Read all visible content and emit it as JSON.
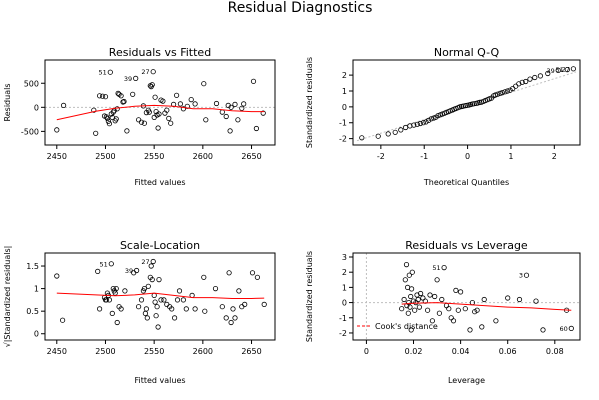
{
  "title": "Residual Diagnostics",
  "colors": {
    "points": "#000000",
    "smooth": "#ff0000",
    "reference": "#bebebe",
    "cook": "#ff0000"
  },
  "chart_data": [
    {
      "type": "scatter",
      "title": "Residuals vs Fitted",
      "xlabel": "Fitted values",
      "ylabel": "Residuals",
      "xlim": [
        2442,
        2670
      ],
      "ylim": [
        -700,
        900
      ],
      "xticks": [
        2450,
        2500,
        2550,
        2600,
        2650
      ],
      "yticks": [
        -500,
        0,
        500
      ],
      "zero_line": 0,
      "x": [
        2450,
        2457,
        2488,
        2490,
        2494,
        2497,
        2499,
        2500,
        2501,
        2502,
        2503,
        2504,
        2505,
        2506,
        2507,
        2508,
        2509,
        2510,
        2511,
        2512,
        2513,
        2514,
        2516,
        2518,
        2519,
        2522,
        2528,
        2531,
        2534,
        2537,
        2539,
        2540,
        2542,
        2544,
        2545,
        2546,
        2547,
        2548,
        2549,
        2550,
        2551,
        2552,
        2553,
        2554,
        2555,
        2557,
        2559,
        2561,
        2563,
        2565,
        2567,
        2570,
        2573,
        2577,
        2580,
        2584,
        2588,
        2592,
        2601,
        2603,
        2614,
        2620,
        2624,
        2626,
        2628,
        2629,
        2633,
        2636,
        2640,
        2642,
        2652,
        2655,
        2662
      ],
      "y": [
        -470,
        40,
        -60,
        -540,
        240,
        230,
        -180,
        220,
        -200,
        -230,
        -290,
        -340,
        730,
        -140,
        -210,
        -100,
        -70,
        -280,
        -240,
        -30,
        290,
        270,
        240,
        110,
        120,
        -490,
        270,
        600,
        -260,
        -310,
        30,
        -330,
        -110,
        -60,
        -100,
        450,
        430,
        470,
        740,
        -210,
        210,
        -90,
        -160,
        -430,
        -140,
        150,
        130,
        -120,
        -60,
        -230,
        -330,
        60,
        250,
        70,
        -30,
        20,
        160,
        70,
        490,
        -260,
        80,
        -100,
        -190,
        40,
        -490,
        0,
        60,
        -260,
        -20,
        70,
        540,
        -440,
        -120
      ],
      "labeled_points": [
        {
          "label": "51",
          "x": 2505,
          "y": 730
        },
        {
          "label": "39",
          "x": 2531,
          "y": 600
        },
        {
          "label": "27",
          "x": 2549,
          "y": 740
        }
      ],
      "smooth": {
        "x": [
          2450,
          2470,
          2490,
          2510,
          2530,
          2550,
          2570,
          2590,
          2610,
          2630,
          2650,
          2663
        ],
        "y": [
          -260,
          -170,
          -80,
          -20,
          20,
          40,
          20,
          -30,
          -30,
          -70,
          -90,
          -90
        ]
      }
    },
    {
      "type": "scatter",
      "title": "Normal Q-Q",
      "xlabel": "Theoretical Quantiles",
      "ylabel": "Standardized residuals",
      "xlim": [
        -2.55,
        2.5
      ],
      "ylim": [
        -2.15,
        2.7
      ],
      "xticks": [
        -2,
        -1,
        0,
        1,
        2
      ],
      "yticks": [
        -2,
        -1,
        0,
        1,
        2
      ],
      "x": [
        -2.44,
        -2.06,
        -1.83,
        -1.67,
        -1.54,
        -1.43,
        -1.33,
        -1.24,
        -1.16,
        -1.09,
        -1.02,
        -0.96,
        -0.9,
        -0.84,
        -0.78,
        -0.73,
        -0.68,
        -0.63,
        -0.58,
        -0.53,
        -0.49,
        -0.44,
        -0.4,
        -0.35,
        -0.31,
        -0.27,
        -0.22,
        -0.18,
        -0.14,
        -0.1,
        -0.05,
        -0.01,
        0.03,
        0.07,
        0.11,
        0.15,
        0.2,
        0.24,
        0.28,
        0.32,
        0.37,
        0.41,
        0.46,
        0.5,
        0.55,
        0.6,
        0.64,
        0.69,
        0.75,
        0.8,
        0.86,
        0.92,
        0.98,
        1.04,
        1.11,
        1.18,
        1.26,
        1.34,
        1.44,
        1.55,
        1.68,
        1.85,
        2.09,
        2.3,
        2.44
      ],
      "y": [
        -1.95,
        -1.85,
        -1.7,
        -1.6,
        -1.45,
        -1.3,
        -1.2,
        -1.15,
        -1.1,
        -1.05,
        -1,
        -0.95,
        -0.85,
        -0.75,
        -0.7,
        -0.65,
        -0.55,
        -0.5,
        -0.45,
        -0.4,
        -0.35,
        -0.3,
        -0.25,
        -0.2,
        -0.15,
        -0.1,
        -0.05,
        0,
        0.02,
        0.05,
        0.08,
        0.1,
        0.12,
        0.15,
        0.18,
        0.2,
        0.22,
        0.25,
        0.28,
        0.3,
        0.35,
        0.4,
        0.45,
        0.5,
        0.55,
        0.7,
        0.75,
        0.8,
        0.85,
        0.9,
        0.95,
        1,
        1.05,
        1.15,
        1.3,
        1.45,
        1.55,
        1.6,
        1.75,
        1.85,
        1.95,
        2.1,
        2.3,
        2.35,
        2.4
      ],
      "labeled_points": [
        {
          "label": "39",
          "x": 2.09,
          "y": 2.3
        },
        {
          "label": "51",
          "x": 2.3,
          "y": 2.35
        },
        {
          "label": "27",
          "x": 2.44,
          "y": 2.4
        }
      ],
      "reference_line": {
        "x": [
          -2.55,
          2.5
        ],
        "y": [
          -2.13,
          2.2
        ]
      }
    },
    {
      "type": "scatter",
      "title": "Scale-Location",
      "xlabel": "Fitted values",
      "ylabel": "√|Standardized residuals|",
      "xlim": [
        2442,
        2670
      ],
      "ylim": [
        -0.05,
        1.7
      ],
      "xticks": [
        2450,
        2500,
        2550,
        2600,
        2650
      ],
      "yticks": [
        0.0,
        0.5,
        1.0,
        1.5
      ],
      "x": [
        2450,
        2456,
        2492,
        2494,
        2499,
        2500,
        2501,
        2502,
        2503,
        2504,
        2506,
        2507,
        2508,
        2509,
        2510,
        2511,
        2512,
        2514,
        2516,
        2520,
        2529,
        2532,
        2534,
        2537,
        2539,
        2540,
        2541,
        2542,
        2543,
        2544,
        2546,
        2547,
        2548,
        2549,
        2550,
        2551,
        2552,
        2553,
        2554,
        2555,
        2557,
        2560,
        2563,
        2566,
        2568,
        2571,
        2574,
        2576,
        2580,
        2583,
        2589,
        2592,
        2601,
        2602,
        2613,
        2620,
        2624,
        2627,
        2629,
        2631,
        2633,
        2637,
        2640,
        2643,
        2651,
        2656,
        2663
      ],
      "y": [
        1.28,
        0.3,
        1.38,
        0.55,
        0.8,
        0.75,
        0.75,
        0.9,
        0.85,
        0.75,
        1.55,
        0.45,
        1.0,
        0.95,
        0.9,
        1.0,
        0.25,
        0.6,
        0.55,
        0.95,
        1.35,
        1.4,
        0.6,
        0.75,
        0.95,
        1.0,
        0.45,
        0.55,
        0.35,
        1.05,
        1.25,
        1.5,
        1.2,
        1.6,
        0.85,
        0.7,
        0.4,
        0.6,
        0.15,
        1.2,
        0.75,
        0.75,
        0.65,
        0.6,
        0.55,
        0.35,
        0.75,
        0.95,
        0.75,
        0.55,
        0.85,
        0.55,
        1.25,
        0.5,
        1.0,
        0.6,
        0.35,
        1.35,
        0.25,
        0.55,
        0.35,
        0.95,
        0.6,
        0.65,
        1.35,
        1.25,
        0.65
      ],
      "labeled_points": [
        {
          "label": "51",
          "x": 2506,
          "y": 1.55
        },
        {
          "label": "39",
          "x": 2532,
          "y": 1.4
        },
        {
          "label": "27",
          "x": 2549,
          "y": 1.6
        }
      ],
      "smooth": {
        "x": [
          2450,
          2470,
          2490,
          2510,
          2530,
          2550,
          2570,
          2590,
          2610,
          2630,
          2650,
          2663
        ],
        "y": [
          0.9,
          0.88,
          0.86,
          0.84,
          0.86,
          0.9,
          0.85,
          0.8,
          0.8,
          0.78,
          0.78,
          0.79
        ]
      }
    },
    {
      "type": "scatter",
      "title": "Residuals vs Leverage",
      "xlabel": "Leverage",
      "ylabel": "Standardized residuals",
      "xlim": [
        -0.004,
        0.089
      ],
      "ylim": [
        -2.2,
        3.0
      ],
      "xticks": [
        0.0,
        0.02,
        0.04,
        0.06,
        0.08
      ],
      "yticks": [
        -2,
        -1,
        0,
        1,
        2,
        3
      ],
      "zero_line": 0,
      "x": [
        0.015,
        0.016,
        0.0165,
        0.017,
        0.0172,
        0.0175,
        0.0178,
        0.018,
        0.0182,
        0.0185,
        0.0188,
        0.019,
        0.0192,
        0.0195,
        0.02,
        0.0205,
        0.021,
        0.0215,
        0.022,
        0.0225,
        0.023,
        0.024,
        0.025,
        0.026,
        0.027,
        0.028,
        0.029,
        0.03,
        0.031,
        0.032,
        0.033,
        0.034,
        0.035,
        0.036,
        0.037,
        0.038,
        0.039,
        0.04,
        0.042,
        0.044,
        0.045,
        0.046,
        0.047,
        0.049,
        0.05,
        0.055,
        0.06,
        0.065,
        0.068,
        0.072,
        0.075,
        0.085,
        0.087
      ],
      "y": [
        -0.4,
        0.2,
        1.5,
        2.5,
        -0.2,
        1.0,
        -0.7,
        0.0,
        1.8,
        -0.3,
        0.4,
        -1.8,
        0.9,
        2.0,
        0.1,
        -0.5,
        0.0,
        0.5,
        0.2,
        -0.3,
        0.6,
        0.3,
        0.1,
        -0.5,
        0.5,
        -1.2,
        0.4,
        1.5,
        -0.7,
        0.2,
        2.3,
        -0.2,
        -0.4,
        -1.0,
        -1.2,
        0.8,
        -0.5,
        0.7,
        -0.4,
        -1.8,
        0.0,
        -0.6,
        -0.5,
        -1.6,
        0.2,
        -1.2,
        0.3,
        0.2,
        1.8,
        0.1,
        -1.8,
        -0.5,
        -1.7
      ],
      "labeled_points": [
        {
          "label": "51",
          "x": 0.033,
          "y": 2.3
        },
        {
          "label": "3",
          "x": 0.068,
          "y": 1.8
        },
        {
          "label": "60",
          "x": 0.087,
          "y": -1.7
        }
      ],
      "smooth": {
        "x": [
          0.015,
          0.02,
          0.03,
          0.04,
          0.05,
          0.06,
          0.07,
          0.08,
          0.087
        ],
        "y": [
          -0.1,
          -0.05,
          0.0,
          -0.1,
          -0.2,
          -0.3,
          -0.35,
          -0.45,
          -0.5
        ]
      },
      "legend": {
        "label": "Cook's distance",
        "position": "bottom-left"
      }
    }
  ]
}
